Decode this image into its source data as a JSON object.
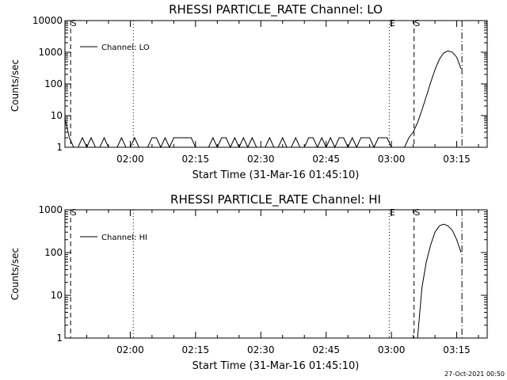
{
  "footer": {
    "timestamp": "27-Oct-2021 00:50"
  },
  "chart_data": [
    {
      "type": "line",
      "title": "RHESSI PARTICLE_RATE Channel: LO",
      "xlabel": "Start Time (31-Mar-16 01:45:10)",
      "ylabel": "Counts/sec",
      "yscale": "log",
      "ylim": [
        1,
        10000
      ],
      "yticks": [
        {
          "v": 1,
          "label": "1"
        },
        {
          "v": 10,
          "label": "10"
        },
        {
          "v": 100,
          "label": "100"
        },
        {
          "v": 1000,
          "label": "1000"
        },
        {
          "v": 10000,
          "label": "10000"
        }
      ],
      "xlim_min": [
        0,
        97
      ],
      "xticks": [
        {
          "v": 15,
          "label": "02:00"
        },
        {
          "v": 30,
          "label": "02:15"
        },
        {
          "v": 45,
          "label": "02:30"
        },
        {
          "v": 60,
          "label": "02:45"
        },
        {
          "v": 75,
          "label": "03:00"
        },
        {
          "v": 90,
          "label": "03:15"
        }
      ],
      "legend": {
        "label": "Channel: LO",
        "position": "top-left"
      },
      "markers": [
        {
          "x": 1.3,
          "style": "dashed",
          "label": "S"
        },
        {
          "x": 15.7,
          "style": "dotted",
          "label": ""
        },
        {
          "x": 74.5,
          "style": "dotted",
          "label": "E"
        },
        {
          "x": 80.2,
          "style": "dashed",
          "label": "S"
        },
        {
          "x": 91.2,
          "style": "dashdot",
          "label": ""
        }
      ],
      "series": [
        {
          "x": [
            0,
            1,
            2,
            3,
            4,
            5,
            6,
            7,
            8,
            9,
            10,
            11,
            12,
            13,
            14,
            15,
            16,
            17,
            18,
            19,
            20,
            21,
            22,
            23,
            24,
            25,
            26,
            27,
            28,
            29,
            30,
            31,
            32,
            33,
            34,
            35,
            36,
            37,
            38,
            39,
            40,
            41,
            42,
            43,
            44,
            45,
            46,
            47,
            48,
            49,
            50,
            51,
            52,
            53,
            54,
            55,
            56,
            57,
            58,
            59,
            60,
            61,
            62,
            63,
            64,
            65,
            66,
            67,
            68,
            69,
            70,
            71,
            72,
            73,
            74,
            75,
            76,
            77,
            78,
            79,
            80,
            81,
            82,
            83,
            84,
            85,
            86,
            87,
            88,
            89,
            90,
            91
          ],
          "y": [
            8,
            2,
            1,
            1,
            2,
            1,
            2,
            1,
            1,
            2,
            1,
            1,
            1,
            2,
            1,
            1,
            2,
            1,
            1,
            1,
            2,
            2,
            1,
            2,
            1,
            2,
            2,
            2,
            2,
            2,
            1,
            1,
            1,
            1,
            2,
            1,
            2,
            2,
            1,
            2,
            1,
            2,
            1,
            2,
            1,
            1,
            1,
            2,
            1,
            1,
            2,
            1,
            1,
            2,
            1,
            1,
            2,
            2,
            1,
            2,
            1,
            2,
            1,
            2,
            2,
            1,
            2,
            1,
            2,
            2,
            2,
            1,
            2,
            2,
            2,
            1,
            1,
            1,
            1,
            2,
            3,
            6,
            15,
            40,
            110,
            280,
            600,
            950,
            1100,
            1000,
            700,
            300
          ]
        }
      ]
    },
    {
      "type": "line",
      "title": "RHESSI PARTICLE_RATE Channel: HI",
      "xlabel": "Start Time (31-Mar-16 01:45:10)",
      "ylabel": "Counts/sec",
      "yscale": "log",
      "ylim": [
        1,
        1000
      ],
      "yticks": [
        {
          "v": 1,
          "label": "1"
        },
        {
          "v": 10,
          "label": "10"
        },
        {
          "v": 100,
          "label": "100"
        },
        {
          "v": 1000,
          "label": "1000"
        }
      ],
      "xlim_min": [
        0,
        97
      ],
      "xticks": [
        {
          "v": 15,
          "label": "02:00"
        },
        {
          "v": 30,
          "label": "02:15"
        },
        {
          "v": 45,
          "label": "02:30"
        },
        {
          "v": 60,
          "label": "02:45"
        },
        {
          "v": 75,
          "label": "03:00"
        },
        {
          "v": 90,
          "label": "03:15"
        }
      ],
      "legend": {
        "label": "Channel: HI",
        "position": "top-left"
      },
      "markers": [
        {
          "x": 1.3,
          "style": "dashed",
          "label": "S"
        },
        {
          "x": 15.7,
          "style": "dotted",
          "label": ""
        },
        {
          "x": 74.5,
          "style": "dotted",
          "label": "E"
        },
        {
          "x": 80.2,
          "style": "dashed",
          "label": "S"
        },
        {
          "x": 91.2,
          "style": "dashdot",
          "label": ""
        }
      ],
      "series": [
        {
          "x": [
            81,
            82,
            83,
            84,
            85,
            86,
            87,
            88,
            89,
            90,
            91
          ],
          "y": [
            1,
            15,
            60,
            150,
            300,
            420,
            460,
            420,
            330,
            200,
            100
          ]
        }
      ]
    }
  ]
}
